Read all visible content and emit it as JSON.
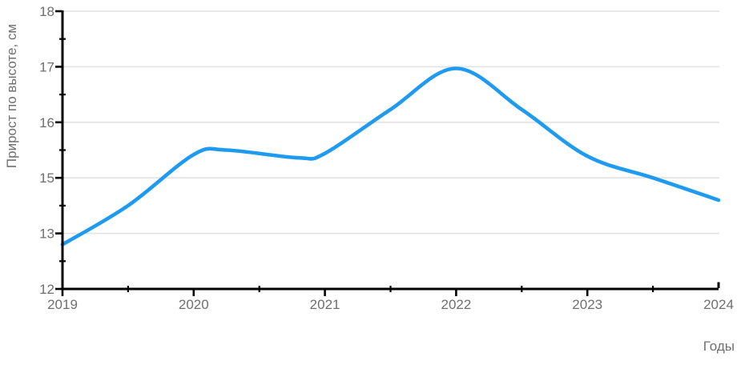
{
  "chart_data": {
    "type": "line",
    "title": "",
    "xlabel": "Годы",
    "ylabel": "Прирост по высоте, см",
    "x": [
      2019,
      2020,
      2021,
      2022,
      2023,
      2024
    ],
    "values": [
      12.8,
      15.4,
      15.4,
      17.0,
      15.4,
      14.2
    ],
    "x_tick_labels": [
      "2019",
      "2020",
      "2021",
      "2022",
      "2023",
      "2024"
    ],
    "y_tick_labels_bottom_to_top": [
      "12",
      "13",
      "15",
      "16",
      "17",
      "18"
    ],
    "y_tick_values_bottom_to_top": [
      12,
      13,
      15,
      16,
      17,
      18
    ],
    "y_axis_note": "printed tick labels skip 14",
    "xlim": [
      2019,
      2024
    ],
    "grid": "horizontal-major-only",
    "legend": "none",
    "minor_ticks": "at half-step positions on both axes",
    "smooth_curve_anchors": [
      [
        2019.0,
        12.8
      ],
      [
        2019.5,
        14.0
      ],
      [
        2020.0,
        15.42
      ],
      [
        2020.25,
        15.5
      ],
      [
        2020.8,
        15.36
      ],
      [
        2021.0,
        15.44
      ],
      [
        2021.5,
        16.23
      ],
      [
        2022.0,
        16.97
      ],
      [
        2022.5,
        16.23
      ],
      [
        2023.0,
        15.39
      ],
      [
        2023.5,
        15.0
      ],
      [
        2024.0,
        14.2
      ]
    ]
  },
  "style": {
    "line_color": "#1e9bf0",
    "grid_color": "#e4e4e4",
    "axis_color": "#000000",
    "label_color": "#6f6f6f",
    "background": "#ffffff"
  }
}
